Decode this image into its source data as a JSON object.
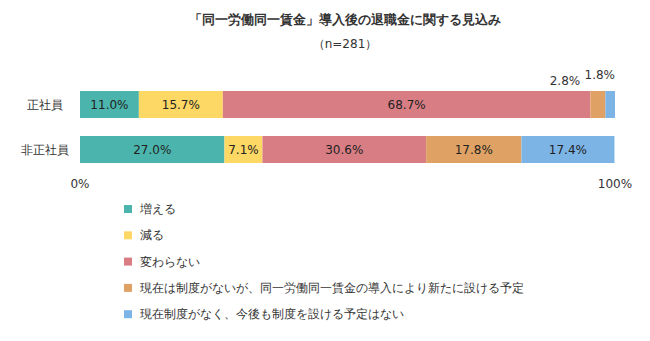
{
  "chart_data": {
    "type": "bar",
    "orientation": "horizontal",
    "stacked": true,
    "data_labels": true,
    "grid": false,
    "legend": "bottom",
    "title": "「同一労働同一賃金」導入後の退職金に関する見込み",
    "subtitle": "（n=281）",
    "categories": [
      "正社員",
      "非正社員"
    ],
    "xlim": [
      0,
      100
    ],
    "xticks": [
      {
        "value": 0,
        "label": "0%"
      },
      {
        "value": 100,
        "label": "100%"
      }
    ],
    "series": [
      {
        "name": "増える",
        "color": "#4bb5ad",
        "values": [
          11.0,
          27.0
        ],
        "value_labels": [
          "11.0%",
          "27.0%"
        ]
      },
      {
        "name": "減る",
        "color": "#fdd865",
        "values": [
          15.7,
          7.1
        ],
        "value_labels": [
          "15.7%",
          "7.1%"
        ]
      },
      {
        "name": "変わらない",
        "color": "#d97d85",
        "values": [
          68.7,
          30.6
        ],
        "value_labels": [
          "68.7%",
          "30.6%"
        ]
      },
      {
        "name": "現在は制度がないが、同一労働同一賃金の導入により新たに設ける予定",
        "color": "#e0a264",
        "values": [
          2.8,
          17.8
        ],
        "value_labels": [
          "2.8%",
          "17.8%"
        ]
      },
      {
        "name": "現在制度がなく、今後も制度を設ける予定はない",
        "color": "#7db4e6",
        "values": [
          1.8,
          17.4
        ],
        "value_labels": [
          "1.8%",
          "17.4%"
        ]
      }
    ]
  }
}
